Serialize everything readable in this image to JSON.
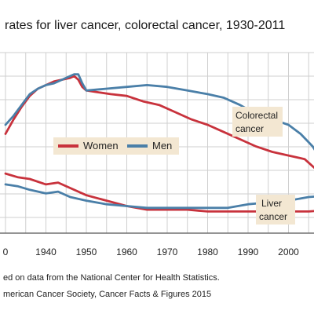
{
  "chart_data": {
    "type": "line",
    "title": "rates for liver cancer, colorectal cancer, 1930-2011",
    "x_ticks": [
      "0",
      "1940",
      "1950",
      "1960",
      "1970",
      "1980",
      "1990",
      "2000"
    ],
    "xlim": [
      1930,
      2011
    ],
    "ylim": [
      0,
      1
    ],
    "grid": true,
    "legend": {
      "placement": "center",
      "entries": [
        {
          "name": "Women",
          "color": "#c8323c"
        },
        {
          "name": "Men",
          "color": "#4a7fa8"
        }
      ]
    },
    "annotations": {
      "colorectal": [
        "Colorectal",
        "cancer"
      ],
      "liver": [
        "Liver",
        "cancer"
      ]
    },
    "series": [
      {
        "name": "Women",
        "group": "Colorectal",
        "color": "#c8323c",
        "x": [
          1930,
          1932,
          1934,
          1936,
          1938,
          1940,
          1942,
          1944,
          1946,
          1947,
          1948,
          1949,
          1950,
          1953,
          1956,
          1960,
          1964,
          1968,
          1972,
          1976,
          1980,
          1984,
          1988,
          1992,
          1996,
          2000,
          2004,
          2008,
          2011
        ],
        "y": [
          0.55,
          0.63,
          0.7,
          0.76,
          0.8,
          0.82,
          0.84,
          0.85,
          0.86,
          0.87,
          0.85,
          0.81,
          0.79,
          0.78,
          0.77,
          0.76,
          0.73,
          0.71,
          0.67,
          0.63,
          0.6,
          0.56,
          0.52,
          0.48,
          0.45,
          0.43,
          0.41,
          0.33,
          0.27
        ]
      },
      {
        "name": "Men",
        "group": "Colorectal",
        "color": "#4a7fa8",
        "x": [
          1930,
          1932,
          1934,
          1936,
          1938,
          1940,
          1942,
          1944,
          1946,
          1947,
          1948,
          1949,
          1950,
          1955,
          1960,
          1965,
          1970,
          1975,
          1980,
          1984,
          1988,
          1992,
          1996,
          2000,
          2003,
          2006,
          2011
        ],
        "y": [
          0.6,
          0.65,
          0.71,
          0.77,
          0.8,
          0.82,
          0.83,
          0.85,
          0.87,
          0.88,
          0.88,
          0.83,
          0.79,
          0.8,
          0.81,
          0.82,
          0.81,
          0.79,
          0.77,
          0.75,
          0.71,
          0.66,
          0.63,
          0.6,
          0.55,
          0.48,
          0.3
        ]
      },
      {
        "name": "Women",
        "group": "Liver",
        "color": "#c8323c",
        "x": [
          1930,
          1933,
          1936,
          1940,
          1943,
          1946,
          1950,
          1955,
          1960,
          1965,
          1970,
          1975,
          1980,
          1985,
          1990,
          1995,
          2000,
          2005,
          2011
        ],
        "y": [
          0.33,
          0.31,
          0.3,
          0.27,
          0.28,
          0.25,
          0.21,
          0.18,
          0.15,
          0.13,
          0.13,
          0.13,
          0.12,
          0.12,
          0.12,
          0.12,
          0.12,
          0.12,
          0.13
        ]
      },
      {
        "name": "Men",
        "group": "Liver",
        "color": "#4a7fa8",
        "x": [
          1930,
          1933,
          1936,
          1940,
          1943,
          1946,
          1950,
          1955,
          1960,
          1965,
          1970,
          1975,
          1980,
          1985,
          1990,
          1995,
          2000,
          2005,
          2011
        ],
        "y": [
          0.27,
          0.26,
          0.24,
          0.22,
          0.23,
          0.2,
          0.18,
          0.16,
          0.15,
          0.14,
          0.14,
          0.14,
          0.14,
          0.14,
          0.16,
          0.17,
          0.18,
          0.2,
          0.21
        ]
      }
    ]
  },
  "notes": {
    "source_line1": "ed on data from the National Center for Health Statistics.",
    "source_line2": "merican Cancer Society, Cancer Facts & Figures 2015"
  },
  "colors": {
    "women": "#c8323c",
    "men": "#4a7fa8",
    "plot_background": "#ffffff",
    "grid": "#cfcfcf",
    "label_box": "#f3e7d2"
  }
}
